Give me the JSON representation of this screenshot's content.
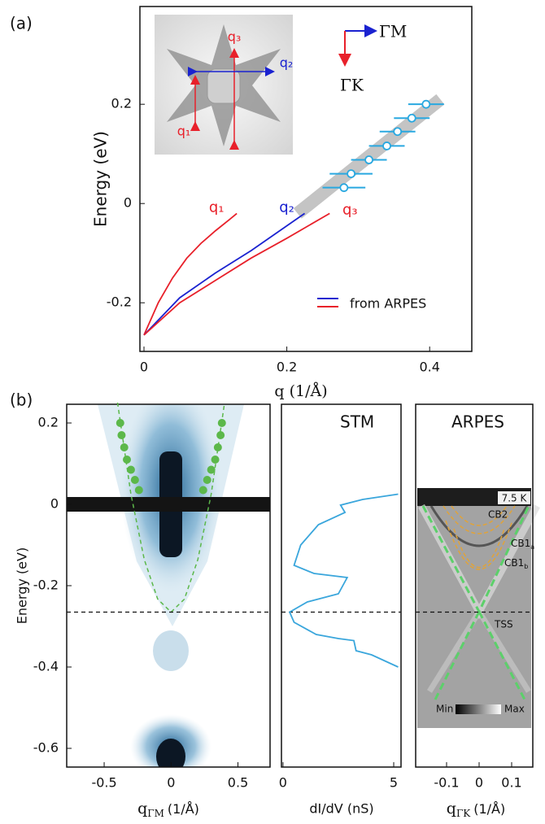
{
  "panel_labels": [
    "(a)",
    "(b)"
  ],
  "chart_data": [
    {
      "type": "line",
      "x_label": "q (1/Å)",
      "y_label": "Energy (eV)",
      "xlim": [
        -0.0057,
        0.459
      ],
      "ylim": [
        -0.298,
        0.397
      ],
      "xticks": [
        0,
        0.2,
        0.4
      ],
      "yticks": [
        -0.2,
        0,
        0.2
      ],
      "series": [
        {
          "name": "q₁",
          "color": "#e8202a",
          "x": [
            0,
            0.02,
            0.04,
            0.06,
            0.08,
            0.1,
            0.12,
            0.13
          ],
          "values": [
            -0.265,
            -0.2,
            -0.15,
            -0.11,
            -0.08,
            -0.055,
            -0.032,
            -0.02
          ]
        },
        {
          "name": "q₂",
          "color": "#1a22d0",
          "x": [
            0,
            0.05,
            0.1,
            0.15,
            0.2,
            0.225
          ],
          "values": [
            -0.265,
            -0.19,
            -0.14,
            -0.095,
            -0.045,
            -0.02
          ]
        },
        {
          "name": "q₃",
          "color": "#e8202a",
          "x": [
            0,
            0.05,
            0.1,
            0.15,
            0.2,
            0.26
          ],
          "values": [
            -0.265,
            -0.2,
            -0.155,
            -0.11,
            -0.07,
            -0.02
          ]
        }
      ],
      "points": {
        "color": "#29a8e0",
        "x": [
          0.28,
          0.29,
          0.315,
          0.34,
          0.355,
          0.375,
          0.395
        ],
        "values": [
          0.032,
          0.06,
          0.088,
          0.116,
          0.145,
          0.172,
          0.2
        ],
        "xerr": [
          0.03,
          0.03,
          0.025,
          0.025,
          0.025,
          0.025,
          0.025
        ]
      },
      "band": {
        "color": "#c4c4c4",
        "x": [
          0.215,
          0.415
        ],
        "values": [
          -0.02,
          0.21
        ]
      },
      "legend_label": "from ARPES",
      "legend_colors": [
        "#1a22d0",
        "#e8202a"
      ],
      "inset_labels": [
        "q₃",
        "q₂",
        "q₁"
      ],
      "arrow_labels": [
        "ΓM",
        "ΓK"
      ]
    },
    {
      "type": "heatmap",
      "y_label": "Energy (eV)",
      "x_label": "q",
      "x_label_sub": "ΓM",
      "x_label_unit": "(1/Å)",
      "xlim": [
        -0.78,
        0.74
      ],
      "ylim": [
        -0.646,
        0.246
      ],
      "xticks": [
        -0.5,
        0,
        0.5
      ],
      "yticks": [
        -0.6,
        -0.4,
        -0.2,
        0,
        0.2
      ],
      "dirac_energy": -0.265,
      "dots": {
        "color": "#5cb84a",
        "x": [
          0.38,
          0.37,
          0.35,
          0.33,
          0.3,
          0.27,
          0.24,
          -0.38,
          -0.37,
          -0.35,
          -0.33,
          -0.3,
          -0.27,
          -0.24
        ],
        "values": [
          0.2,
          0.17,
          0.14,
          0.11,
          0.085,
          0.06,
          0.035,
          0.2,
          0.17,
          0.14,
          0.11,
          0.085,
          0.06,
          0.035
        ]
      },
      "fit": {
        "color": "#5cb84a",
        "x": [
          -0.4,
          -0.3,
          -0.2,
          -0.1,
          0,
          0.1,
          0.2,
          0.3,
          0.4
        ],
        "values": [
          0.25,
          0.025,
          -0.136,
          -0.233,
          -0.265,
          -0.233,
          -0.136,
          0.025,
          0.25
        ]
      }
    },
    {
      "type": "line",
      "title": "STM",
      "x_label": "dI/dV (nS)",
      "xlim": [
        -0.07,
        5.33
      ],
      "ylim": [
        -0.646,
        0.246
      ],
      "xticks": [
        0,
        5
      ],
      "series": [
        {
          "color": "#3aa6dc",
          "x": [
            5.2,
            3.6,
            2.6,
            2.8,
            1.6,
            0.8,
            0.5,
            1.4,
            2.9,
            2.5,
            1.1,
            0.3,
            0.5,
            1.5,
            2.5,
            3.2,
            3.3,
            4.0,
            5.2
          ],
          "values": [
            0.025,
            0.012,
            -0.002,
            -0.02,
            -0.05,
            -0.1,
            -0.15,
            -0.17,
            -0.18,
            -0.22,
            -0.24,
            -0.265,
            -0.29,
            -0.32,
            -0.33,
            -0.335,
            -0.36,
            -0.37,
            -0.4
          ]
        }
      ]
    },
    {
      "type": "image",
      "title": "ARPES",
      "x_label": "q",
      "x_label_sub": "ΓK",
      "x_label_unit": "(1/Å)",
      "xlim": [
        -0.195,
        0.165
      ],
      "ylim": [
        -0.646,
        0.246
      ],
      "xticks": [
        -0.1,
        0,
        0.1
      ],
      "temperature": "7.5 K",
      "annotations": [
        {
          "text": "CB2"
        },
        {
          "text": "CB1",
          "sub": "a"
        },
        {
          "text": "CB1",
          "sub": "b"
        },
        {
          "text": "TSS"
        }
      ],
      "colorbar_labels": [
        "Min",
        "Max"
      ]
    }
  ]
}
